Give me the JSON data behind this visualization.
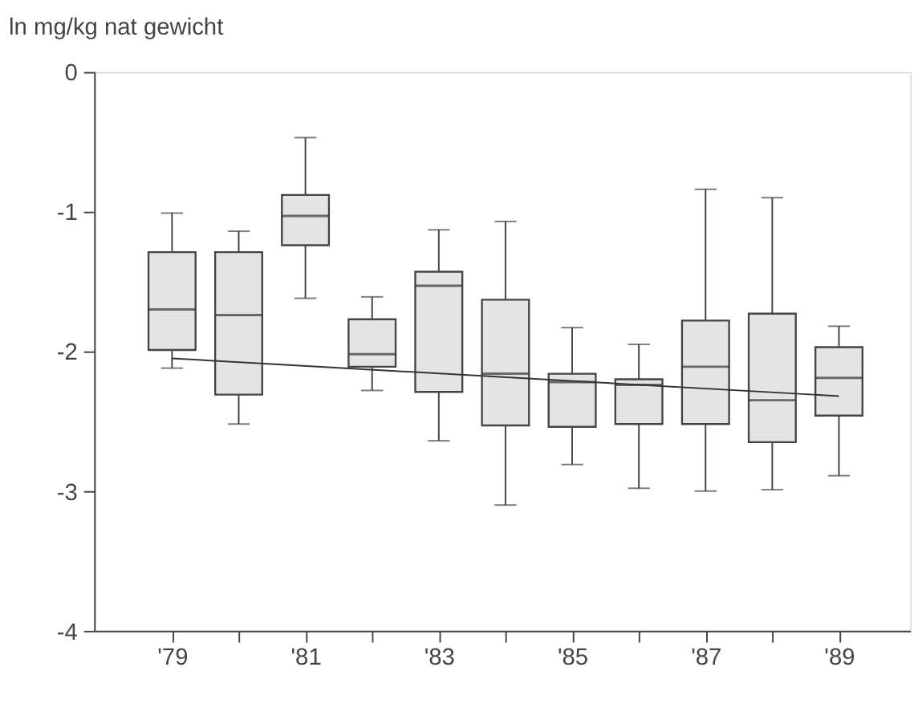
{
  "chart_data": {
    "type": "box",
    "ylabel": "ln mg/kg nat gewicht",
    "categories": [
      "'79",
      null,
      "'81",
      null,
      "'83",
      null,
      "'85",
      null,
      "'87",
      null,
      "'89"
    ],
    "ylim": [
      -4,
      0
    ],
    "yticks": [
      0,
      -1,
      -2,
      -3,
      -4
    ],
    "grid": false,
    "series": [
      {
        "color": "#e4e4e4",
        "boxes": [
          {
            "low": -2.12,
            "q1": -1.99,
            "median": -1.7,
            "q3": -1.29,
            "high": -1.01
          },
          {
            "low": -2.52,
            "q1": -2.31,
            "median": -1.74,
            "q3": -1.29,
            "high": -1.14
          },
          {
            "low": -1.62,
            "q1": -1.24,
            "median": -1.03,
            "q3": -0.88,
            "high": -0.47
          },
          {
            "low": -2.28,
            "q1": -2.11,
            "median": -2.02,
            "q3": -1.77,
            "high": -1.61
          },
          {
            "low": -2.64,
            "q1": -2.29,
            "median": -1.53,
            "q3": -1.43,
            "high": -1.13
          },
          {
            "low": -3.1,
            "q1": -2.53,
            "median": -2.16,
            "q3": -1.63,
            "high": -1.07
          },
          {
            "low": -2.81,
            "q1": -2.54,
            "median": -2.22,
            "q3": -2.16,
            "high": -1.83
          },
          {
            "low": -2.98,
            "q1": -2.52,
            "median": -2.24,
            "q3": -2.2,
            "high": -1.95
          },
          {
            "low": -3.0,
            "q1": -2.52,
            "median": -2.11,
            "q3": -1.78,
            "high": -0.84
          },
          {
            "low": -2.99,
            "q1": -2.65,
            "median": -2.35,
            "q3": -1.73,
            "high": -0.9
          },
          {
            "low": -2.89,
            "q1": -2.46,
            "median": -2.19,
            "q3": -1.97,
            "high": -1.82
          }
        ]
      },
      {
        "type": "line",
        "color": "#333333",
        "x": [
          "'79",
          "'89"
        ],
        "values": [
          -2.05,
          -2.32
        ]
      }
    ]
  }
}
